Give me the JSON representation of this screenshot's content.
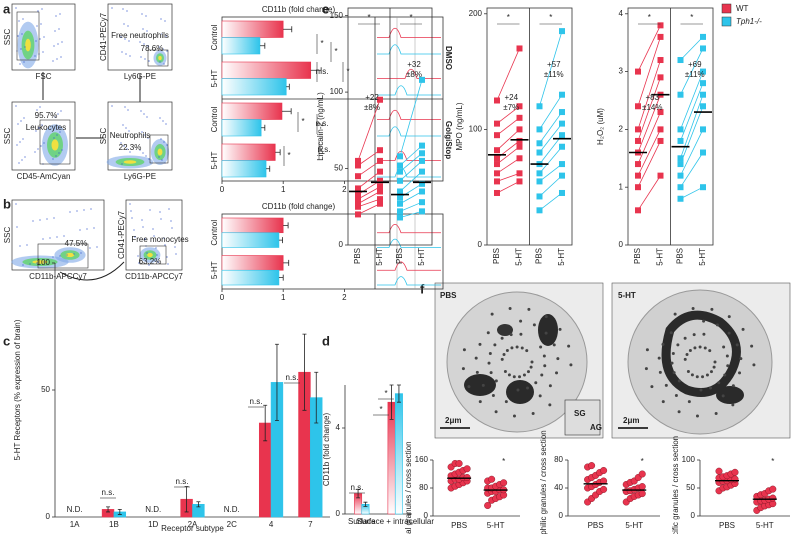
{
  "panel_labels": [
    "a",
    "b",
    "c",
    "d",
    "e",
    "f"
  ],
  "legend": [
    {
      "name": "WT",
      "color": "#e8344e"
    },
    {
      "name": "Tph1-/-",
      "color": "#2ec4ea"
    }
  ],
  "flow": [
    {
      "ylabel": "SSC",
      "xlabel": "FSC",
      "texts": []
    },
    {
      "ylabel": "CD41-PECy7",
      "xlabel": "Ly6G-PE",
      "texts": [
        "Free neutrophils",
        "78.6%"
      ]
    },
    {
      "ylabel": "SSC",
      "xlabel": "CD45-AmCyan",
      "texts": [
        "95.7%",
        "Leukocytes"
      ]
    },
    {
      "ylabel": "SSC",
      "xlabel": "Ly6G-PE",
      "texts": [
        "Neutrophils",
        "22.3%"
      ]
    },
    {
      "ylabel": "SSC",
      "xlabel": "CD11b-APCCy7",
      "texts": [
        "47.5%"
      ]
    },
    {
      "ylabel": "CD41-PECy7",
      "xlabel": "CD11b-APCCy7",
      "texts": [
        "Free monocytes",
        "63.2%"
      ]
    }
  ],
  "micrographs": [
    {
      "label": "PBS",
      "scale": "2μm",
      "inset": [
        "SG",
        "AG"
      ]
    },
    {
      "label": "5-HT",
      "scale": "2μm",
      "inset": []
    }
  ],
  "chart_data": [
    {
      "type": "hbar",
      "title": "CD11b (fold change)",
      "categories": [
        "Control",
        "5-HT",
        "Control",
        "5-HT"
      ],
      "groups": [
        "DMSO",
        "GolgiStop"
      ],
      "series": [
        {
          "color": "#e8344e",
          "values": [
            1.0,
            1.45,
            0.98,
            0.87
          ],
          "errors": [
            0.14,
            0.17,
            0.15,
            0.08
          ]
        },
        {
          "color": "#2ec4ea",
          "values": [
            0.62,
            1.05,
            0.64,
            0.72
          ],
          "errors": [
            0.08,
            0.05,
            0.06,
            0.06
          ]
        }
      ],
      "xlim": [
        0,
        2.5
      ],
      "xticks": [
        0,
        1,
        2
      ],
      "annotations": [
        "*",
        "*",
        "n.s.",
        "*",
        "*",
        "n.s.",
        "*",
        "n.s."
      ]
    },
    {
      "type": "hbar",
      "title": "CD11b (fold change)",
      "categories": [
        "Control",
        "5-HT"
      ],
      "series": [
        {
          "color": "#e8344e",
          "values": [
            1.0,
            1.0
          ],
          "errors": [
            0.08,
            0.09
          ]
        },
        {
          "color": "#2ec4ea",
          "values": [
            0.93,
            0.93
          ],
          "errors": [
            0.06,
            0.07
          ]
        }
      ],
      "xlim": [
        0,
        2.5
      ],
      "xticks": [
        0,
        1,
        2
      ],
      "annotations": []
    },
    {
      "type": "vbar",
      "ylabel": "5-HT Receptors (% expression of brain)",
      "xlabel": "Receptor subtype",
      "categories": [
        "1A",
        "1B",
        "1D",
        "2A",
        "2C",
        "4",
        "7"
      ],
      "missing_label": "N.D.",
      "series": [
        {
          "color": "#e8344e",
          "values": [
            null,
            3,
            null,
            7,
            null,
            37,
            57
          ],
          "errors": [
            null,
            1,
            null,
            5,
            null,
            7,
            15
          ]
        },
        {
          "color": "#2ec4ea",
          "values": [
            null,
            2,
            null,
            5,
            null,
            53,
            47
          ],
          "errors": [
            null,
            1,
            null,
            1,
            null,
            15,
            10
          ]
        }
      ],
      "ylim": [
        0,
        100
      ],
      "yticks": [
        0,
        50,
        100
      ],
      "annotations": [
        "n.s.",
        "n.s.",
        "n.s.",
        "n.s."
      ]
    },
    {
      "type": "vbar",
      "ylabel": "CD11b (fold change)",
      "categories": [
        "Surface",
        "Surface + intracellular"
      ],
      "series": [
        {
          "color": "#e8344e",
          "values": [
            0.95,
            5.2
          ],
          "errors": [
            0.2,
            0.8
          ]
        },
        {
          "color": "#2ec4ea",
          "values": [
            0.45,
            5.6
          ],
          "errors": [
            0.1,
            0.4
          ]
        }
      ],
      "ylim": [
        0,
        6
      ],
      "yticks": [
        0,
        4
      ],
      "annotations": [
        "n.s.",
        "*",
        "*"
      ]
    },
    {
      "type": "paired",
      "ylabel": "Lipocalin-2 (ng/mL)",
      "categories": [
        "PBS",
        "5-HT",
        "PBS",
        "5-HT"
      ],
      "ylim": [
        0,
        155
      ],
      "yticks": [
        0,
        50,
        100,
        150
      ],
      "annotations": [
        "*",
        "*"
      ],
      "groups": [
        {
          "color": "#e8344e",
          "pbs": [
            20,
            25,
            27,
            30,
            33,
            37,
            45,
            52,
            55
          ],
          "ht": [
            27,
            30,
            35,
            38,
            42,
            48,
            55,
            62,
            95
          ],
          "means": [
            35,
            41
          ],
          "change_label": [
            "+22",
            "±8%"
          ]
        },
        {
          "color": "#2ec4ea",
          "pbs": [
            18,
            22,
            27,
            31,
            35,
            42,
            48,
            52,
            58
          ],
          "ht": [
            22,
            28,
            35,
            40,
            48,
            55,
            60,
            65,
            108
          ],
          "means": [
            33,
            41
          ],
          "change_label": [
            "+32",
            "±8%"
          ]
        }
      ]
    },
    {
      "type": "paired",
      "ylabel": "MPO (ng/mL)",
      "categories": [
        "PBS",
        "5-HT",
        "PBS",
        "5-HT"
      ],
      "ylim": [
        0,
        205
      ],
      "yticks": [
        0,
        100,
        200
      ],
      "annotations": [
        "*",
        "*"
      ],
      "groups": [
        {
          "color": "#e8344e",
          "pbs": [
            45,
            55,
            62,
            70,
            75,
            82,
            95,
            105,
            125
          ],
          "ht": [
            55,
            62,
            75,
            85,
            90,
            100,
            110,
            120,
            170
          ],
          "means": [
            78,
            91
          ],
          "change_label": [
            "+24",
            "±7%"
          ]
        },
        {
          "color": "#2ec4ea",
          "pbs": [
            30,
            42,
            55,
            62,
            70,
            80,
            88,
            100,
            120
          ],
          "ht": [
            45,
            60,
            70,
            85,
            95,
            105,
            115,
            130,
            185
          ],
          "means": [
            70,
            92
          ],
          "change_label": [
            "+57",
            "±11%"
          ]
        }
      ]
    },
    {
      "type": "paired",
      "ylabel": "H₂O₂ (uM)",
      "categories": [
        "PBS",
        "5-HT",
        "PBS",
        "5-HT"
      ],
      "ylim": [
        0,
        4.1
      ],
      "yticks": [
        0,
        1,
        2,
        3,
        4
      ],
      "annotations": [
        "*",
        "*"
      ],
      "groups": [
        {
          "color": "#e8344e",
          "pbs": [
            0.6,
            1.0,
            1.2,
            1.4,
            1.6,
            1.8,
            2.0,
            2.4,
            3.0
          ],
          "ht": [
            1.2,
            1.8,
            2.0,
            2.3,
            2.6,
            2.9,
            3.2,
            3.6,
            3.8
          ],
          "means": [
            1.6,
            2.6
          ],
          "change_label": [
            "+83",
            "±14%"
          ]
        },
        {
          "color": "#2ec4ea",
          "pbs": [
            0.8,
            1.0,
            1.2,
            1.4,
            1.5,
            1.8,
            2.0,
            2.6,
            3.2
          ],
          "ht": [
            1.0,
            1.6,
            2.0,
            2.4,
            2.6,
            2.8,
            3.0,
            3.4,
            3.6
          ],
          "means": [
            1.7,
            2.3
          ],
          "change_label": [
            "+69",
            "±11%"
          ]
        }
      ]
    },
    {
      "type": "dots",
      "ylabel": "Total granules / cross section",
      "categories": [
        "PBS",
        "5-HT"
      ],
      "color": "#e8344e",
      "ylim": [
        0,
        160
      ],
      "yticks": [
        0,
        80,
        160
      ],
      "annotations": [
        "*"
      ],
      "values": [
        [
          80,
          85,
          90,
          95,
          100,
          100,
          105,
          105,
          110,
          110,
          115,
          120,
          125,
          130,
          135,
          140,
          150,
          150
        ],
        [
          30,
          45,
          50,
          55,
          60,
          65,
          70,
          70,
          75,
          75,
          80,
          80,
          85,
          90,
          95,
          100,
          105
        ]
      ],
      "means": [
        108,
        74
      ]
    },
    {
      "type": "dots",
      "ylabel": "Azurophilic granules / cross section",
      "categories": [
        "PBS",
        "5-HT"
      ],
      "color": "#e8344e",
      "ylim": [
        0,
        80
      ],
      "yticks": [
        0,
        40,
        80
      ],
      "annotations": [
        "*"
      ],
      "values": [
        [
          20,
          25,
          30,
          35,
          38,
          40,
          42,
          45,
          48,
          50,
          52,
          55,
          58,
          62,
          65,
          70,
          72
        ],
        [
          20,
          25,
          28,
          30,
          32,
          35,
          36,
          38,
          40,
          42,
          45,
          48,
          50,
          55,
          60
        ]
      ],
      "means": [
        46,
        37
      ]
    },
    {
      "type": "dots",
      "ylabel": "Specific granules / cross section",
      "categories": [
        "PBS",
        "5-HT"
      ],
      "color": "#e8344e",
      "ylim": [
        0,
        100
      ],
      "yticks": [
        0,
        50,
        100
      ],
      "annotations": [
        "*"
      ],
      "values": [
        [
          45,
          50,
          52,
          55,
          58,
          60,
          62,
          63,
          65,
          66,
          68,
          70,
          72,
          75,
          78,
          80
        ],
        [
          10,
          15,
          18,
          20,
          22,
          25,
          27,
          28,
          30,
          32,
          35,
          38,
          40,
          45,
          48
        ]
      ],
      "means": [
        63,
        30
      ]
    }
  ]
}
